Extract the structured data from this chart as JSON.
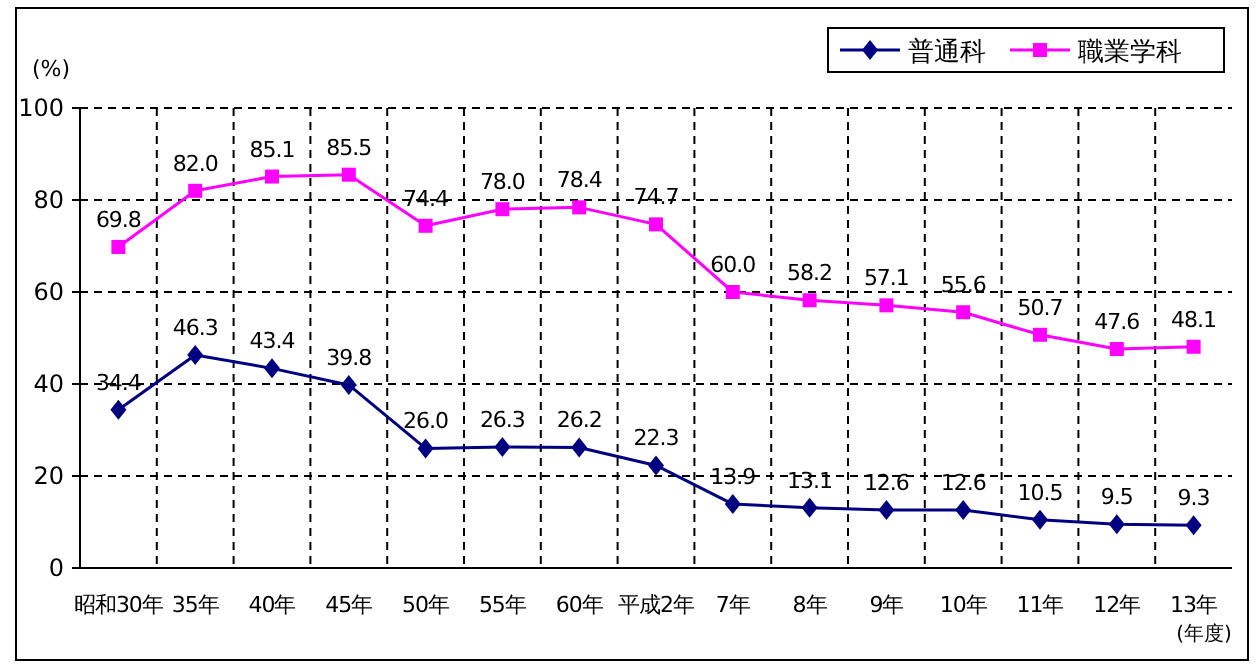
{
  "chart_data": {
    "type": "line",
    "ylabel": "(%)",
    "xlabel": "(年度)",
    "categories": [
      "昭和30年",
      "35年",
      "40年",
      "45年",
      "50年",
      "55年",
      "60年",
      "平成2年",
      "7年",
      "8年",
      "9年",
      "10年",
      "11年",
      "12年",
      "13年"
    ],
    "series": [
      {
        "name": "普通科",
        "color": "#000080",
        "marker": "diamond",
        "values": [
          34.4,
          46.3,
          43.4,
          39.8,
          26.0,
          26.3,
          26.2,
          22.3,
          13.9,
          13.1,
          12.6,
          12.6,
          10.5,
          9.5,
          9.3
        ],
        "value_labels": [
          "34.4",
          "46.3",
          "43.4",
          "39.8",
          "26.0",
          "26.3",
          "26.2",
          "22.3",
          "13.9",
          "13.1",
          "12.6",
          "12.6",
          "10.5",
          "9.5",
          "9.3"
        ]
      },
      {
        "name": "職業学科",
        "color": "#ff00ff",
        "marker": "square",
        "values": [
          69.8,
          82.0,
          85.1,
          85.5,
          74.4,
          78.0,
          78.4,
          74.7,
          60.0,
          58.2,
          57.1,
          55.6,
          50.7,
          47.6,
          48.1
        ],
        "value_labels": [
          "69.8",
          "82.0",
          "85.1",
          "85.5",
          "74.4",
          "78.0",
          "78.4",
          "74.7",
          "60.0",
          "58.2",
          "57.1",
          "55.6",
          "50.7",
          "47.6",
          "48.1"
        ]
      }
    ],
    "ylim": [
      0,
      100
    ],
    "yticks": [
      0,
      20,
      40,
      60,
      80,
      100
    ],
    "grid": true,
    "legend": "top right",
    "line_style": "solid"
  }
}
